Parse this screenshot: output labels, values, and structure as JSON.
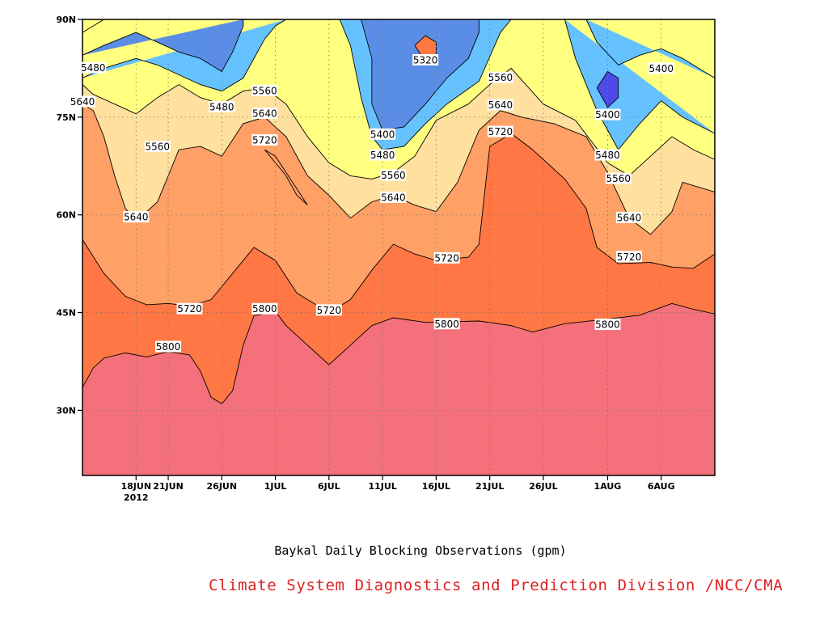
{
  "chart_data": {
    "type": "heatmap",
    "title": "Baykal Daily Blocking Observations (gpm)",
    "x_type": "date",
    "x_range": [
      "2012-06-13",
      "2012-08-11"
    ],
    "xticks": [
      {
        "date": "2012-06-18",
        "label": "18JUN",
        "sublabel": "2012"
      },
      {
        "date": "2012-06-21",
        "label": "21JUN"
      },
      {
        "date": "2012-06-26",
        "label": "26JUN"
      },
      {
        "date": "2012-07-01",
        "label": "1JUL"
      },
      {
        "date": "2012-07-06",
        "label": "6JUL"
      },
      {
        "date": "2012-07-11",
        "label": "11JUL"
      },
      {
        "date": "2012-07-16",
        "label": "16JUL"
      },
      {
        "date": "2012-07-21",
        "label": "21JUL"
      },
      {
        "date": "2012-07-26",
        "label": "26JUL"
      },
      {
        "date": "2012-08-01",
        "label": "1AUG"
      },
      {
        "date": "2012-08-06",
        "label": "6AUG"
      }
    ],
    "ylim": [
      20,
      90
    ],
    "yticks": [
      {
        "value": 30,
        "label": "30N"
      },
      {
        "value": 45,
        "label": "45N"
      },
      {
        "value": 60,
        "label": "60N"
      },
      {
        "value": 75,
        "label": "75N"
      },
      {
        "value": 90,
        "label": "90N"
      }
    ],
    "grid": true,
    "levels": [
      5320,
      5400,
      5480,
      5560,
      5640,
      5720,
      5800
    ],
    "fill_colors": {
      "below_5320": "#4d4ae6",
      "5320_5400": "#5a8ee6",
      "5400_5480": "#66c2ff",
      "5480_5560": "#ffff80",
      "5560_5640": "#ffe09e",
      "5640_5720": "#ffa066",
      "5720_5800": "#ff7744",
      "above_5800": "#f4707a"
    },
    "contour_labels": [
      {
        "value": 5480,
        "date": "2012-06-14",
        "lat": 82.6
      },
      {
        "value": 5640,
        "date": "2012-06-13",
        "lat": 77.4
      },
      {
        "value": 5560,
        "date": "2012-06-20",
        "lat": 70.5
      },
      {
        "value": 5640,
        "date": "2012-06-18",
        "lat": 59.7
      },
      {
        "value": 5480,
        "date": "2012-06-26",
        "lat": 76.6
      },
      {
        "value": 5560,
        "date": "2012-06-30",
        "lat": 79.1
      },
      {
        "value": 5640,
        "date": "2012-06-30",
        "lat": 75.6
      },
      {
        "value": 5720,
        "date": "2012-06-30",
        "lat": 71.5
      },
      {
        "value": 5320,
        "date": "2012-07-15",
        "lat": 83.8
      },
      {
        "value": 5400,
        "date": "2012-07-11",
        "lat": 72.4
      },
      {
        "value": 5480,
        "date": "2012-07-11",
        "lat": 69.2
      },
      {
        "value": 5560,
        "date": "2012-07-12",
        "lat": 66.1
      },
      {
        "value": 5640,
        "date": "2012-07-12",
        "lat": 62.7
      },
      {
        "value": 5720,
        "date": "2012-07-17",
        "lat": 53.4
      },
      {
        "value": 5800,
        "date": "2012-07-17",
        "lat": 43.3
      },
      {
        "value": 5560,
        "date": "2012-07-22",
        "lat": 81.1
      },
      {
        "value": 5640,
        "date": "2012-07-22",
        "lat": 76.9
      },
      {
        "value": 5720,
        "date": "2012-07-22",
        "lat": 72.8
      },
      {
        "value": 5400,
        "date": "2012-08-01",
        "lat": 75.4
      },
      {
        "value": 5480,
        "date": "2012-08-01",
        "lat": 69.2
      },
      {
        "value": 5560,
        "date": "2012-08-02",
        "lat": 65.6
      },
      {
        "value": 5640,
        "date": "2012-08-03",
        "lat": 59.6
      },
      {
        "value": 5720,
        "date": "2012-08-03",
        "lat": 53.6
      },
      {
        "value": 5800,
        "date": "2012-08-01",
        "lat": 43.2
      },
      {
        "value": 5400,
        "date": "2012-08-06",
        "lat": 82.5
      },
      {
        "value": 5720,
        "date": "2012-06-23",
        "lat": 45.6
      },
      {
        "value": 5800,
        "date": "2012-06-21",
        "lat": 39.8
      },
      {
        "value": 5800,
        "date": "2012-06-30",
        "lat": 45.6
      },
      {
        "value": 5720,
        "date": "2012-07-06",
        "lat": 45.4
      }
    ],
    "contours": [
      {
        "level": 5800,
        "points": [
          [
            "2012-06-13",
            33.5
          ],
          [
            "2012-06-14",
            36.5
          ],
          [
            "2012-06-15",
            38.0
          ],
          [
            "2012-06-17",
            38.8
          ],
          [
            "2012-06-19",
            38.2
          ],
          [
            "2012-06-21",
            39.0
          ],
          [
            "2012-06-23",
            38.5
          ],
          [
            "2012-06-24",
            36.0
          ],
          [
            "2012-06-25",
            32.0
          ],
          [
            "2012-06-26",
            31.0
          ],
          [
            "2012-06-27",
            33.0
          ],
          [
            "2012-06-28",
            40.0
          ],
          [
            "2012-06-29",
            44.5
          ],
          [
            "2012-07-01",
            45.2
          ],
          [
            "2012-07-02",
            43.0
          ],
          [
            "2012-07-04",
            40.0
          ],
          [
            "2012-07-06",
            37.0
          ],
          [
            "2012-07-08",
            40.0
          ],
          [
            "2012-07-10",
            43.0
          ],
          [
            "2012-07-12",
            44.2
          ],
          [
            "2012-07-15",
            43.5
          ],
          [
            "2012-07-20",
            43.7
          ],
          [
            "2012-07-23",
            43.0
          ],
          [
            "2012-07-25",
            42.0
          ],
          [
            "2012-07-28",
            43.3
          ],
          [
            "2012-08-01",
            44.0
          ],
          [
            "2012-08-04",
            44.6
          ],
          [
            "2012-08-07",
            46.4
          ],
          [
            "2012-08-09",
            45.5
          ],
          [
            "2012-08-11",
            44.8
          ]
        ]
      },
      {
        "level": 5720,
        "points": [
          [
            "2012-06-13",
            56.2
          ],
          [
            "2012-06-15",
            51.0
          ],
          [
            "2012-06-17",
            47.5
          ],
          [
            "2012-06-19",
            46.2
          ],
          [
            "2012-06-21",
            46.4
          ],
          [
            "2012-06-23",
            46.0
          ],
          [
            "2012-06-25",
            47.0
          ],
          [
            "2012-06-27",
            51.0
          ],
          [
            "2012-06-29",
            55.0
          ],
          [
            "2012-07-01",
            53.0
          ],
          [
            "2012-07-03",
            48.0
          ],
          [
            "2012-07-06",
            45.0
          ],
          [
            "2012-07-08",
            47.0
          ],
          [
            "2012-07-10",
            51.5
          ],
          [
            "2012-07-12",
            55.5
          ],
          [
            "2012-07-14",
            54.0
          ],
          [
            "2012-07-16",
            53.0
          ],
          [
            "2012-07-19",
            53.5
          ],
          [
            "2012-07-20",
            55.5
          ],
          [
            "2012-07-21",
            70.5
          ],
          [
            "2012-07-23",
            72.5
          ],
          [
            "2012-07-25",
            70.0
          ],
          [
            "2012-07-28",
            65.5
          ],
          [
            "2012-07-30",
            61.0
          ],
          [
            "2012-07-31",
            55.0
          ],
          [
            "2012-08-02",
            52.5
          ],
          [
            "2012-08-05",
            52.7
          ],
          [
            "2012-08-07",
            52.0
          ],
          [
            "2012-08-09",
            51.8
          ],
          [
            "2012-08-11",
            54.0
          ]
        ]
      },
      {
        "level": 5640,
        "points": [
          [
            "2012-06-13",
            77.0
          ],
          [
            "2012-06-14",
            76.0
          ],
          [
            "2012-06-15",
            72.0
          ],
          [
            "2012-06-16",
            66.0
          ],
          [
            "2012-06-17",
            61.0
          ],
          [
            "2012-06-18",
            59.0
          ],
          [
            "2012-06-20",
            62.0
          ],
          [
            "2012-06-22",
            70.0
          ],
          [
            "2012-06-24",
            70.5
          ],
          [
            "2012-06-26",
            69.0
          ],
          [
            "2012-06-28",
            74.0
          ],
          [
            "2012-06-30",
            75.0
          ],
          [
            "2012-07-02",
            72.0
          ],
          [
            "2012-07-04",
            66.0
          ],
          [
            "2012-07-06",
            63.0
          ],
          [
            "2012-07-08",
            59.5
          ],
          [
            "2012-07-10",
            62.0
          ],
          [
            "2012-07-12",
            63.0
          ],
          [
            "2012-07-14",
            61.5
          ],
          [
            "2012-07-16",
            60.5
          ],
          [
            "2012-07-18",
            65.0
          ],
          [
            "2012-07-20",
            73.0
          ],
          [
            "2012-07-22",
            76.0
          ],
          [
            "2012-07-24",
            75.0
          ],
          [
            "2012-07-27",
            74.0
          ],
          [
            "2012-07-30",
            72.0
          ],
          [
            "2012-08-01",
            66.5
          ],
          [
            "2012-08-03",
            59.5
          ],
          [
            "2012-08-05",
            57.0
          ],
          [
            "2012-08-07",
            60.5
          ],
          [
            "2012-08-08",
            65.0
          ],
          [
            "2012-08-11",
            63.5
          ]
        ]
      },
      {
        "level": 5560,
        "points": [
          [
            "2012-06-13",
            80.0
          ],
          [
            "2012-06-14",
            78.5
          ],
          [
            "2012-06-16",
            77.0
          ],
          [
            "2012-06-18",
            75.5
          ],
          [
            "2012-06-20",
            78.0
          ],
          [
            "2012-06-22",
            80.0
          ],
          [
            "2012-06-24",
            78.0
          ],
          [
            "2012-06-26",
            77.0
          ],
          [
            "2012-06-28",
            79.0
          ],
          [
            "2012-06-30",
            79.5
          ],
          [
            "2012-07-02",
            77.0
          ],
          [
            "2012-07-04",
            72.0
          ],
          [
            "2012-07-06",
            68.0
          ],
          [
            "2012-07-08",
            66.0
          ],
          [
            "2012-07-10",
            65.5
          ],
          [
            "2012-07-12",
            66.5
          ],
          [
            "2012-07-14",
            69.0
          ],
          [
            "2012-07-16",
            74.5
          ],
          [
            "2012-07-19",
            77.0
          ],
          [
            "2012-07-21",
            80.0
          ],
          [
            "2012-07-23",
            82.5
          ],
          [
            "2012-07-26",
            77.0
          ],
          [
            "2012-07-29",
            74.5
          ],
          [
            "2012-08-01",
            68.0
          ],
          [
            "2012-08-03",
            66.0
          ],
          [
            "2012-08-05",
            69.0
          ],
          [
            "2012-08-07",
            72.0
          ],
          [
            "2012-08-09",
            70.0
          ],
          [
            "2012-08-11",
            68.5
          ]
        ]
      },
      {
        "level": 5480,
        "points": [
          [
            "2012-06-13",
            81.0
          ],
          [
            "2012-06-15",
            82.5
          ],
          [
            "2012-06-18",
            84.0
          ],
          [
            "2012-06-20",
            83.0
          ],
          [
            "2012-06-22",
            81.5
          ],
          [
            "2012-06-24",
            80.0
          ],
          [
            "2012-06-26",
            79.0
          ],
          [
            "2012-06-28",
            81.0
          ],
          [
            "2012-06-30",
            87.0
          ],
          [
            "2012-07-01",
            89.0
          ],
          [
            "2012-07-02",
            90.0
          ]
        ]
      },
      {
        "level": 5480,
        "points": [
          [
            "2012-07-07",
            90.0
          ],
          [
            "2012-07-08",
            86.0
          ],
          [
            "2012-07-09",
            78.0
          ],
          [
            "2012-07-10",
            72.0
          ],
          [
            "2012-07-11",
            70.0
          ],
          [
            "2012-07-13",
            70.5
          ],
          [
            "2012-07-15",
            74.0
          ],
          [
            "2012-07-17",
            77.0
          ],
          [
            "2012-07-20",
            80.5
          ],
          [
            "2012-07-22",
            88.0
          ],
          [
            "2012-07-23",
            90.0
          ]
        ]
      },
      {
        "level": 5480,
        "points": [
          [
            "2012-07-28",
            90.0
          ],
          [
            "2012-07-29",
            84.0
          ],
          [
            "2012-07-31",
            76.0
          ],
          [
            "2012-08-01",
            73.0
          ],
          [
            "2012-08-02",
            70.0
          ],
          [
            "2012-08-04",
            74.0
          ],
          [
            "2012-08-06",
            77.5
          ],
          [
            "2012-08-08",
            75.0
          ],
          [
            "2012-08-11",
            72.5
          ]
        ]
      },
      {
        "level": 5400,
        "points": [
          [
            "2012-06-13",
            84.5
          ],
          [
            "2012-06-15",
            86.0
          ],
          [
            "2012-06-18",
            88.0
          ],
          [
            "2012-06-20",
            86.5
          ],
          [
            "2012-06-22",
            85.0
          ],
          [
            "2012-06-24",
            84.0
          ],
          [
            "2012-06-26",
            82.0
          ],
          [
            "2012-06-27",
            85.0
          ],
          [
            "2012-06-28",
            89.0
          ],
          [
            "2012-06-28",
            90.0
          ]
        ]
      },
      {
        "level": 5400,
        "points": [
          [
            "2012-07-09",
            90.0
          ],
          [
            "2012-07-10",
            84.0
          ],
          [
            "2012-07-10",
            77.0
          ],
          [
            "2012-07-11",
            73.0
          ],
          [
            "2012-07-13",
            73.5
          ],
          [
            "2012-07-15",
            77.0
          ],
          [
            "2012-07-17",
            81.0
          ],
          [
            "2012-07-19",
            84.0
          ],
          [
            "2012-07-20",
            88.0
          ],
          [
            "2012-07-20",
            90.0
          ]
        ]
      },
      {
        "level": 5400,
        "points": [
          [
            "2012-07-30",
            90.0
          ],
          [
            "2012-07-31",
            86.5
          ],
          [
            "2012-08-02",
            83.0
          ],
          [
            "2012-08-04",
            84.5
          ],
          [
            "2012-08-06",
            85.5
          ],
          [
            "2012-08-08",
            84.0
          ],
          [
            "2012-08-10",
            82.0
          ],
          [
            "2012-08-11",
            81.0
          ]
        ]
      },
      {
        "level": 5400,
        "points": [
          [
            "2012-07-31",
            79.5
          ],
          [
            "2012-08-01",
            82.0
          ],
          [
            "2012-08-02",
            81.0
          ],
          [
            "2012-08-02",
            78.0
          ],
          [
            "2012-08-01",
            76.5
          ],
          [
            "2012-07-31",
            79.5
          ]
        ]
      },
      {
        "level": 5320,
        "points": [
          [
            "2012-06-13",
            88.0
          ],
          [
            "2012-06-14",
            89.0
          ],
          [
            "2012-06-15",
            90.0
          ]
        ]
      },
      {
        "level": 5320,
        "points": [
          [
            "2012-07-14",
            86.0
          ],
          [
            "2012-07-15",
            87.5
          ],
          [
            "2012-07-16",
            86.5
          ],
          [
            "2012-07-16",
            84.5
          ],
          [
            "2012-07-15",
            83.5
          ],
          [
            "2012-07-14",
            86.0
          ]
        ]
      },
      {
        "level": 5720,
        "points": [
          [
            "2012-06-30",
            70.0
          ],
          [
            "2012-07-02",
            66.0
          ],
          [
            "2012-07-03",
            63.0
          ],
          [
            "2012-07-04",
            61.5
          ],
          [
            "2012-07-03",
            64.0
          ],
          [
            "2012-07-01",
            69.0
          ],
          [
            "2012-06-30",
            70.0
          ]
        ]
      }
    ]
  },
  "caption": "Baykal Daily Blocking Observations (gpm)",
  "credit": "Climate System Diagnostics and Prediction Division /NCC/CMA"
}
